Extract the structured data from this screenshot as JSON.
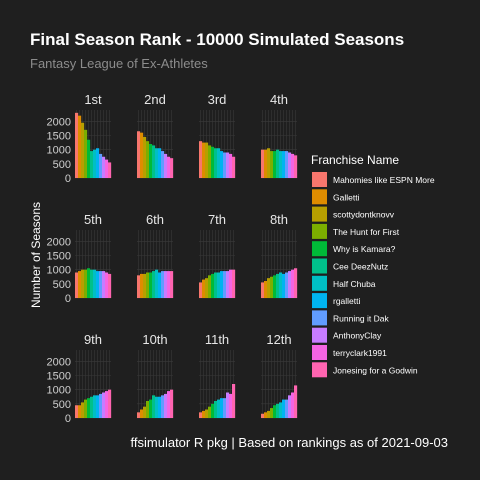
{
  "chart_data": {
    "type": "bar",
    "title": "Final Season Rank - 10000 Simulated Seasons",
    "subtitle": "Fantasy League of Ex-Athletes",
    "caption": "ffsimulator R pkg | Based on rankings as of 2021-09-03",
    "ylabel": "Number of Seasons",
    "legend_title": "Franchise Name",
    "legend_position": "right",
    "ylim": [
      0,
      2400
    ],
    "yticks": [
      "0",
      "500",
      "1000",
      "1500",
      "2000"
    ],
    "grid": true,
    "facets": [
      "1st",
      "2nd",
      "3rd",
      "4th",
      "5th",
      "6th",
      "7th",
      "8th",
      "9th",
      "10th",
      "11th",
      "12th"
    ],
    "series": [
      {
        "name": "Mahomies like ESPN More",
        "color": "#f8766d",
        "values": [
          2300,
          1650,
          1300,
          1000,
          900,
          800,
          550,
          550,
          450,
          200,
          200,
          150
        ]
      },
      {
        "name": "Galletti",
        "color": "#de8c00",
        "values": [
          2200,
          1600,
          1250,
          1000,
          950,
          850,
          650,
          600,
          450,
          300,
          250,
          200
        ]
      },
      {
        "name": "scottydontknovv",
        "color": "#b79f00",
        "values": [
          1950,
          1450,
          1250,
          1050,
          1000,
          850,
          700,
          700,
          550,
          400,
          300,
          250
        ]
      },
      {
        "name": "The Hunt for First",
        "color": "#7cae00",
        "values": [
          1700,
          1300,
          1150,
          950,
          1000,
          900,
          800,
          750,
          650,
          600,
          400,
          350
        ]
      },
      {
        "name": "Why is Kamara?",
        "color": "#00ba38",
        "values": [
          1350,
          1200,
          1100,
          950,
          1050,
          900,
          850,
          800,
          700,
          650,
          500,
          450
        ]
      },
      {
        "name": "Cee DeezNutz",
        "color": "#00c08b",
        "values": [
          950,
          1150,
          1050,
          1000,
          1000,
          950,
          900,
          850,
          750,
          800,
          600,
          500
        ]
      },
      {
        "name": "Half Chuba",
        "color": "#00bfc4",
        "values": [
          1000,
          1050,
          1050,
          950,
          1000,
          1000,
          900,
          900,
          800,
          750,
          650,
          550
        ]
      },
      {
        "name": "rgalletti",
        "color": "#00b4f0",
        "values": [
          1050,
          1050,
          950,
          950,
          950,
          900,
          950,
          850,
          800,
          750,
          700,
          650
        ]
      },
      {
        "name": "Running it Dak",
        "color": "#619cff",
        "values": [
          850,
          950,
          900,
          950,
          950,
          950,
          950,
          900,
          850,
          800,
          700,
          650
        ]
      },
      {
        "name": "AnthonyClay",
        "color": "#c77cff",
        "values": [
          750,
          850,
          900,
          900,
          950,
          950,
          950,
          950,
          900,
          850,
          900,
          800
        ]
      },
      {
        "name": "terryclark1991",
        "color": "#f564e3",
        "values": [
          650,
          750,
          850,
          850,
          900,
          950,
          1000,
          1000,
          950,
          950,
          850,
          900
        ]
      },
      {
        "name": "Jonesing for a Godwin",
        "color": "#ff64b0",
        "values": [
          550,
          700,
          750,
          800,
          850,
          950,
          1000,
          1050,
          1000,
          1000,
          1200,
          1150
        ]
      }
    ]
  }
}
